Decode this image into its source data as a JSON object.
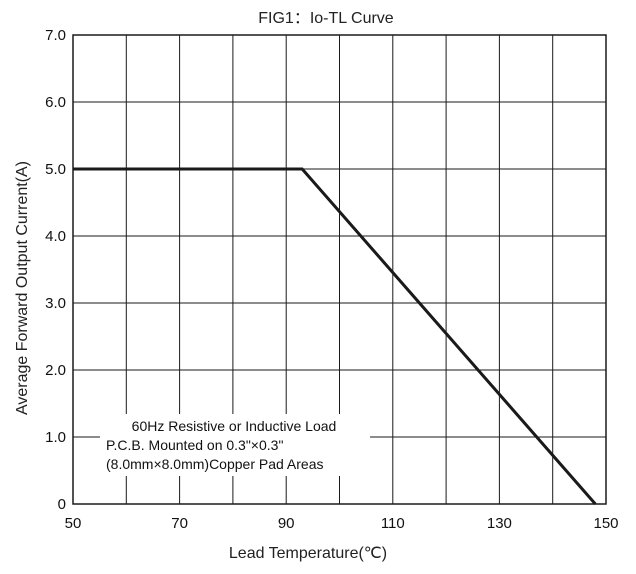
{
  "chart_data": {
    "type": "line",
    "title": "FIG1：Io-TL Curve",
    "xlabel": "Lead Temperature(℃)",
    "ylabel": "Average Forward Output Current(A)",
    "xlim": [
      50,
      150
    ],
    "ylim": [
      0,
      7.0
    ],
    "x_ticks": [
      "50",
      "70",
      "90",
      "110",
      "130",
      "150"
    ],
    "y_ticks": [
      "0",
      "1.0",
      "2.0",
      "3.0",
      "4.0",
      "5.0",
      "6.0",
      "7.0"
    ],
    "grid": true,
    "series": [
      {
        "x": [
          50,
          93,
          148
        ],
        "y": [
          5.0,
          5.0,
          0
        ]
      }
    ],
    "annotation": [
      "60Hz Resistive or Inductive Load",
      "P.C.B. Mounted on 0.3\"×0.3\"",
      "(8.0mm×8.0mm)Copper Pad Areas"
    ],
    "colors": {
      "line": "#1a1a1a",
      "grid": "#1a1a1a"
    }
  }
}
